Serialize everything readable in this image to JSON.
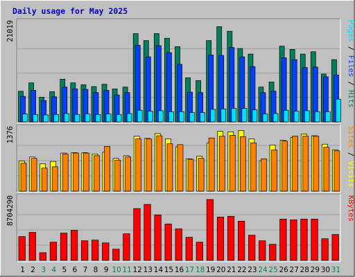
{
  "title": "Daily usage for May 2025",
  "colors": {
    "background": "#C0C0C0",
    "plot_background": "#C0C0C0",
    "title": "#0000C0",
    "hits": "#00805F",
    "files": "#0040FF",
    "pages": "#00E0FF",
    "visits": "#FFFF00",
    "sites": "#FF8000",
    "kbytes": "#FF0000",
    "weekday_label": "#000000",
    "weekend_label": "#00805F"
  },
  "chart_data": [
    {
      "type": "bar",
      "title": "Daily usage for May 2025",
      "ylabel_parts": [
        {
          "text": "Pages",
          "color_key": "pages"
        },
        {
          "text": " / ",
          "color_key": "weekday_label"
        },
        {
          "text": "Files",
          "color_key": "files"
        },
        {
          "text": " / ",
          "color_key": "weekday_label"
        },
        {
          "text": "Hits",
          "color_key": "hits"
        }
      ],
      "max_label": "21019",
      "ymax": 21019,
      "categories": [
        "1",
        "2",
        "3",
        "4",
        "5",
        "6",
        "7",
        "8",
        "9",
        "10",
        "11",
        "12",
        "13",
        "14",
        "15",
        "16",
        "17",
        "18",
        "19",
        "20",
        "21",
        "22",
        "23",
        "24",
        "25",
        "26",
        "27",
        "28",
        "29",
        "30",
        "31"
      ],
      "weekend_days": [
        "3",
        "4",
        "10",
        "11",
        "17",
        "18",
        "24",
        "25",
        "31"
      ],
      "series": [
        {
          "name": "Hits",
          "color_key": "hits",
          "values": [
            6600,
            8400,
            5300,
            6500,
            9200,
            8400,
            8000,
            7600,
            8100,
            7100,
            7500,
            19000,
            17500,
            19000,
            18000,
            16200,
            9500,
            8900,
            17500,
            20500,
            19500,
            15800,
            14600,
            7500,
            8600,
            16300,
            15600,
            14600,
            15100,
            10300,
            13400
          ]
        },
        {
          "name": "Files",
          "color_key": "files",
          "values": [
            5500,
            6800,
            4600,
            5400,
            7500,
            7100,
            7000,
            6300,
            6800,
            5800,
            6300,
            16500,
            14000,
            16400,
            14900,
            12400,
            6400,
            6300,
            14400,
            14300,
            16000,
            14000,
            11900,
            6300,
            6600,
            13800,
            13400,
            11700,
            11800,
            9700,
            10100
          ]
        },
        {
          "name": "Pages",
          "color_key": "pages",
          "values": [
            1700,
            1600,
            1500,
            1600,
            1800,
            1600,
            1700,
            1600,
            1700,
            1600,
            1800,
            2500,
            2300,
            2400,
            2200,
            2200,
            2000,
            2000,
            2700,
            2800,
            2900,
            2900,
            2600,
            1700,
            1800,
            2500,
            2300,
            2400,
            2200,
            2200,
            4900
          ]
        }
      ]
    },
    {
      "type": "bar",
      "ylabel_parts": [
        {
          "text": "Sites",
          "color_key": "sites"
        },
        {
          "text": " / ",
          "color_key": "weekday_label"
        },
        {
          "text": "Visits",
          "color_key": "visits"
        }
      ],
      "max_label": "1376",
      "ymax": 1376,
      "categories": [
        "1",
        "2",
        "3",
        "4",
        "5",
        "6",
        "7",
        "8",
        "9",
        "10",
        "11",
        "12",
        "13",
        "14",
        "15",
        "16",
        "17",
        "18",
        "19",
        "20",
        "21",
        "22",
        "23",
        "24",
        "25",
        "26",
        "27",
        "28",
        "29",
        "30",
        "31"
      ],
      "series": [
        {
          "name": "Visits",
          "color_key": "visits",
          "values": [
            680,
            770,
            620,
            670,
            860,
            870,
            870,
            840,
            880,
            740,
            800,
            1240,
            1190,
            1300,
            1180,
            1000,
            730,
            790,
            1090,
            1350,
            1340,
            1370,
            1180,
            680,
            1040,
            1150,
            1210,
            1290,
            1250,
            1060,
            930
          ]
        },
        {
          "name": "Sites",
          "color_key": "sites",
          "values": [
            630,
            740,
            520,
            550,
            840,
            860,
            860,
            800,
            1010,
            700,
            770,
            1180,
            1180,
            1250,
            1070,
            1050,
            720,
            740,
            1200,
            1240,
            1260,
            1230,
            1090,
            730,
            930,
            1130,
            1240,
            1240,
            1240,
            990,
            910
          ]
        }
      ]
    },
    {
      "type": "bar",
      "ylabel_parts": [
        {
          "text": "KBytes",
          "color_key": "kbytes"
        }
      ],
      "max_label": "8704290",
      "ymax": 8704290,
      "categories": [
        "1",
        "2",
        "3",
        "4",
        "5",
        "6",
        "7",
        "8",
        "9",
        "10",
        "11",
        "12",
        "13",
        "14",
        "15",
        "16",
        "17",
        "18",
        "19",
        "20",
        "21",
        "22",
        "23",
        "24",
        "25",
        "26",
        "27",
        "28",
        "29",
        "30",
        "31"
      ],
      "series": [
        {
          "name": "KBytes",
          "color_key": "kbytes",
          "values": [
            3400000,
            4000000,
            1100000,
            2600000,
            3900000,
            4300000,
            2800000,
            2900000,
            2500000,
            1600000,
            3800000,
            7400000,
            8000000,
            6500000,
            5200000,
            4500000,
            3300000,
            2600000,
            8700000,
            6200000,
            6300000,
            5600000,
            3600000,
            2800000,
            2300000,
            5900000,
            5800000,
            5900000,
            5900000,
            3100000,
            3700000
          ]
        }
      ]
    }
  ]
}
